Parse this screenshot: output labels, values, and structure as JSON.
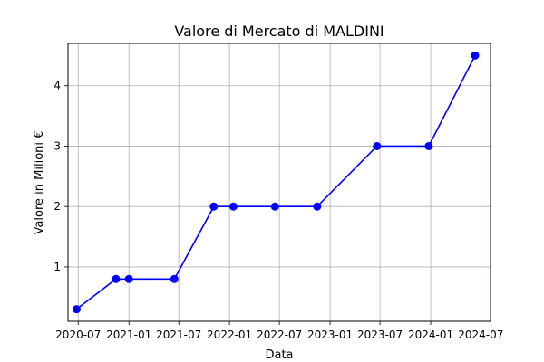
{
  "chart_data": {
    "type": "line",
    "title": "Valore di Mercato di MALDINI",
    "xlabel": "Data",
    "ylabel": "Valore in Milioni €",
    "x_scale": "date",
    "x_ticks": [
      "2020-07",
      "2021-01",
      "2021-07",
      "2022-01",
      "2022-07",
      "2023-01",
      "2023-07",
      "2024-01",
      "2024-07"
    ],
    "y_ticks": [
      1,
      2,
      3,
      4
    ],
    "xlim": [
      "2020-05-25",
      "2024-08-05"
    ],
    "ylim": [
      0.1,
      4.7
    ],
    "grid": true,
    "legend": "none",
    "series": [
      {
        "color": "#0000ff",
        "marker": "circle",
        "points": [
          {
            "x": "2020-06-25",
            "y": 0.3
          },
          {
            "x": "2020-11-15",
            "y": 0.8
          },
          {
            "x": "2021-01-01",
            "y": 0.8
          },
          {
            "x": "2021-06-15",
            "y": 0.8
          },
          {
            "x": "2021-11-05",
            "y": 2.0
          },
          {
            "x": "2022-01-15",
            "y": 2.0
          },
          {
            "x": "2022-06-15",
            "y": 2.0
          },
          {
            "x": "2022-11-15",
            "y": 2.0
          },
          {
            "x": "2023-06-20",
            "y": 3.0
          },
          {
            "x": "2023-12-25",
            "y": 3.0
          },
          {
            "x": "2024-06-10",
            "y": 4.5
          }
        ]
      }
    ]
  }
}
